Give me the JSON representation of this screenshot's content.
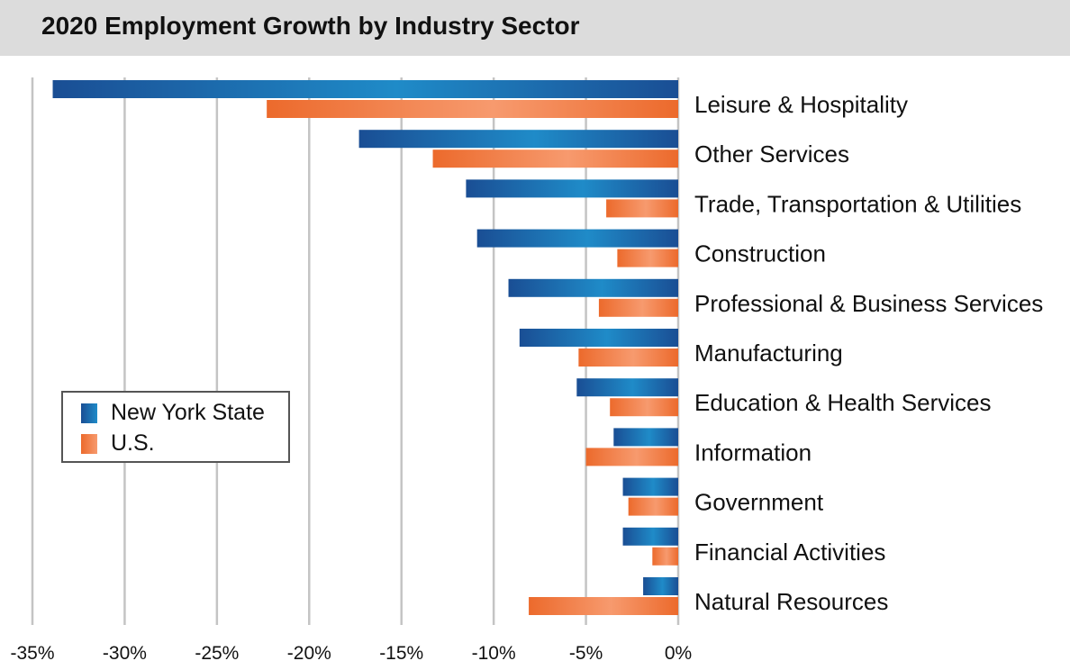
{
  "title": "2020 Employment Growth by Industry Sector",
  "colors": {
    "ny_dark": "#1a4e94",
    "ny_light": "#1f8bc8",
    "us_dark": "#ec6a2c",
    "us_light": "#f79a6e",
    "grid": "#c4c4c4"
  },
  "legend": {
    "ny_label": "New York State",
    "us_label": "U.S."
  },
  "chart_data": {
    "type": "bar",
    "orientation": "horizontal",
    "title": "2020 Employment Growth by Industry Sector",
    "categories": [
      "Leisure & Hospitality",
      "Other Services",
      "Trade, Transportation & Utilities",
      "Construction",
      "Professional & Business Services",
      "Manufacturing",
      "Education & Health Services",
      "Information",
      "Government",
      "Financial Activities",
      "Natural Resources"
    ],
    "series": [
      {
        "name": "New York State",
        "values": [
          -33.9,
          -17.3,
          -11.5,
          -10.9,
          -9.2,
          -8.6,
          -5.5,
          -3.5,
          -3.0,
          -3.0,
          -1.9
        ]
      },
      {
        "name": "U.S.",
        "values": [
          -22.3,
          -13.3,
          -3.9,
          -3.3,
          -4.3,
          -5.4,
          -3.7,
          -5.0,
          -2.7,
          -1.4,
          -8.1
        ]
      }
    ],
    "xlim": [
      -35,
      0
    ],
    "xticks": [
      -35,
      -30,
      -25,
      -20,
      -15,
      -10,
      -5,
      0
    ],
    "tick_labels": [
      "-35%",
      "-30%",
      "-25%",
      "-20%",
      "-15%",
      "-10%",
      "-5%",
      "0%"
    ],
    "grid": true,
    "legend_position": "left-middle"
  }
}
